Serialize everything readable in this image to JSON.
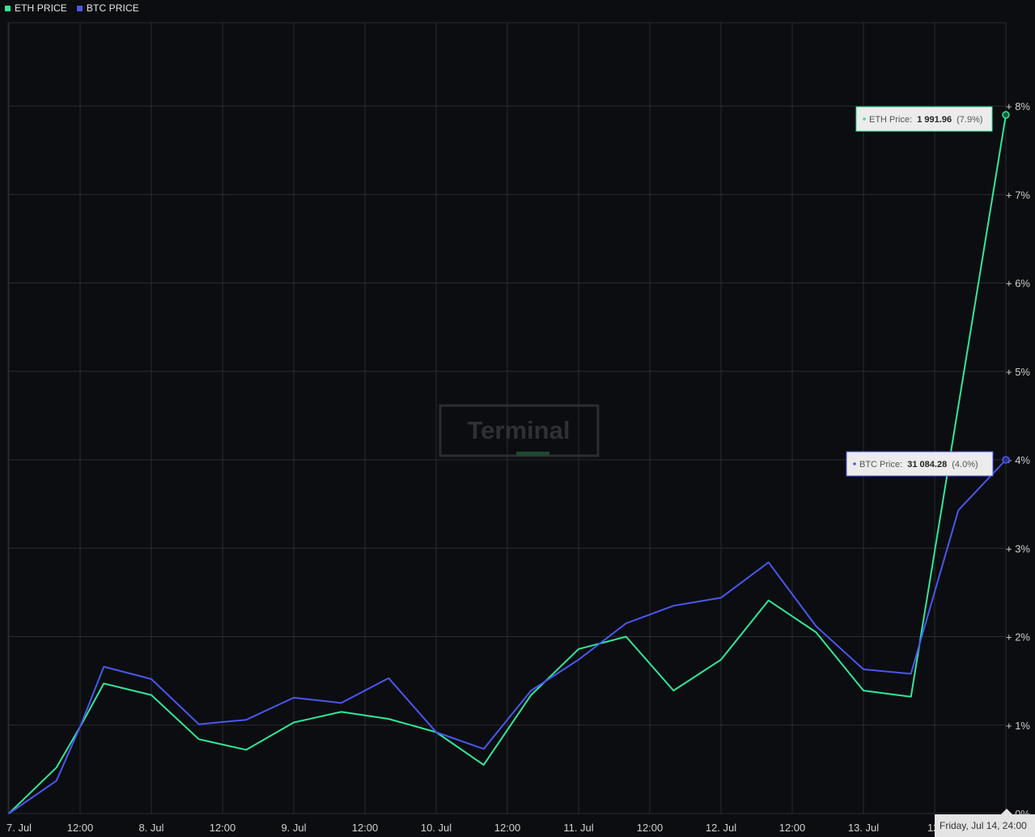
{
  "legend": {
    "eth_label": "ETH PRICE",
    "btc_label": "BTC PRICE"
  },
  "watermark": "Terminal",
  "crosshair_label": "Friday, Jul 14, 24:00",
  "tooltips": {
    "eth": {
      "label": "ETH Price:",
      "value": "1 991.96",
      "pct": "(7.9%)"
    },
    "btc": {
      "label": "BTC Price:",
      "value": "31 084.28",
      "pct": "(4.0%)"
    }
  },
  "colors": {
    "eth": "#2ee89a",
    "btc": "#4a57f0",
    "background": "#0c0d10",
    "grid": "#2a2c31"
  },
  "chart_data": {
    "type": "line",
    "title": "",
    "xlabel": "",
    "ylabel": "",
    "x_ticks": [
      "7. Jul",
      "12:00",
      "8. Jul",
      "12:00",
      "9. Jul",
      "12:00",
      "10. Jul",
      "12:00",
      "11. Jul",
      "12:00",
      "12. Jul",
      "12:00",
      "13. Jul",
      "12:"
    ],
    "y_ticks": [
      "0%",
      "+ 1%",
      "+ 2%",
      "+ 3%",
      "+ 4%",
      "+ 5%",
      "+ 6%",
      "+ 7%",
      "+ 8%"
    ],
    "ylim": [
      0,
      8.9
    ],
    "x_unit": "hours since 7. Jul 00:00",
    "xlim": [
      -14.5,
      168
    ],
    "grid": true,
    "legend_position": "top-left",
    "series": [
      {
        "name": "ETH PRICE",
        "points": [
          [
            0,
            0.0
          ],
          [
            8,
            0.52
          ],
          [
            12,
            0.98
          ],
          [
            16,
            1.47
          ],
          [
            24,
            1.34
          ],
          [
            32,
            0.84
          ],
          [
            40,
            0.72
          ],
          [
            48,
            1.03
          ],
          [
            56,
            1.15
          ],
          [
            64,
            1.07
          ],
          [
            72,
            0.92
          ],
          [
            80,
            0.55
          ],
          [
            88,
            1.34
          ],
          [
            96,
            1.86
          ],
          [
            104,
            2.0
          ],
          [
            112,
            1.39
          ],
          [
            120,
            1.74
          ],
          [
            128,
            2.41
          ],
          [
            136,
            2.05
          ],
          [
            144,
            1.39
          ],
          [
            152,
            1.32
          ],
          [
            168,
            7.9
          ]
        ]
      },
      {
        "name": "BTC PRICE",
        "points": [
          [
            0,
            0.0
          ],
          [
            8,
            0.37
          ],
          [
            12,
            0.98
          ],
          [
            16,
            1.66
          ],
          [
            24,
            1.52
          ],
          [
            32,
            1.01
          ],
          [
            40,
            1.06
          ],
          [
            48,
            1.31
          ],
          [
            56,
            1.25
          ],
          [
            64,
            1.53
          ],
          [
            72,
            0.92
          ],
          [
            80,
            0.73
          ],
          [
            88,
            1.39
          ],
          [
            96,
            1.74
          ],
          [
            104,
            2.15
          ],
          [
            112,
            2.35
          ],
          [
            120,
            2.44
          ],
          [
            128,
            2.84
          ],
          [
            136,
            2.12
          ],
          [
            144,
            1.63
          ],
          [
            152,
            1.58
          ],
          [
            160,
            3.43
          ],
          [
            168,
            4.0
          ]
        ]
      }
    ]
  }
}
